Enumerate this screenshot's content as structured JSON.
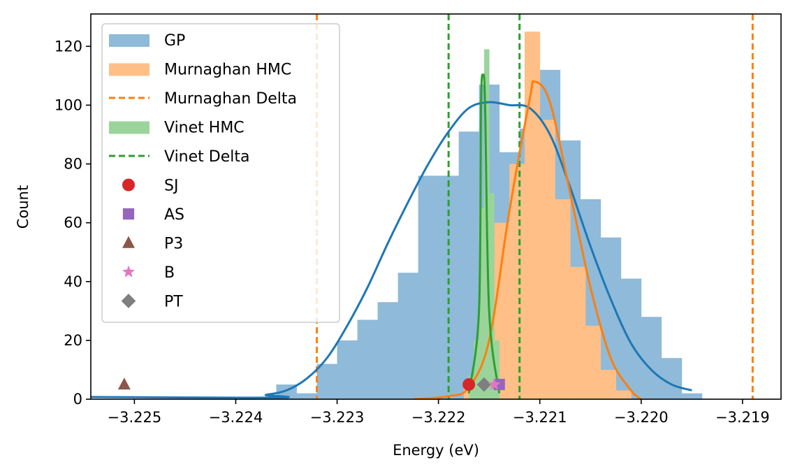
{
  "chart_data": {
    "type": "histogram",
    "xlabel": "Energy (eV)",
    "ylabel": "Count",
    "xlim": [
      -3.22543,
      -3.21862
    ],
    "ylim": [
      0,
      131
    ],
    "x_ticks": [
      -3.225,
      -3.224,
      -3.223,
      -3.222,
      -3.221,
      -3.22,
      -3.219
    ],
    "x_tick_labels": [
      "−3.225",
      "−3.224",
      "−3.223",
      "−3.222",
      "−3.221",
      "−3.220",
      "−3.219"
    ],
    "y_ticks": [
      0,
      20,
      40,
      60,
      80,
      100,
      120
    ],
    "y_tick_labels": [
      "0",
      "20",
      "40",
      "60",
      "80",
      "100",
      "120"
    ],
    "legend_position": "upper-left",
    "legend": [
      "GP",
      "Murnaghan HMC",
      "Murnaghan Delta",
      "Vinet HMC",
      "Vinet Delta",
      "SJ",
      "AS",
      "P3",
      "B",
      "PT"
    ],
    "histograms": [
      {
        "name": "GP",
        "color": "#1f77b4",
        "bar_color": "#8fbad9",
        "bin_edges": [
          -3.2236,
          -3.2234,
          -3.2232,
          -3.223,
          -3.2228,
          -3.2226,
          -3.2224,
          -3.2222,
          -3.222,
          -3.2218,
          -3.2216,
          -3.2214,
          -3.2212,
          -3.221,
          -3.2208,
          -3.2206,
          -3.2204,
          -3.2202,
          -3.22,
          -3.2198,
          -3.2196,
          -3.2194
        ],
        "counts": [
          5,
          2,
          12,
          20,
          27,
          33,
          43,
          76,
          76,
          91,
          107,
          84,
          92,
          112,
          88,
          68,
          55,
          41,
          28,
          14,
          2,
          3
        ],
        "kde_x": [
          -3.22395,
          -3.2237,
          -3.2235,
          -3.2233,
          -3.2231,
          -3.2229,
          -3.2227,
          -3.2225,
          -3.2223,
          -3.2221,
          -3.2219,
          -3.2217,
          -3.2215,
          -3.2213,
          -3.2211,
          -3.2209,
          -3.2207,
          -3.2205,
          -3.2203,
          -3.2201,
          -3.2199,
          -3.2197,
          -3.2195,
          -3.22935
        ],
        "kde_y": [
          0.5,
          1.5,
          3,
          7,
          14,
          25,
          38,
          53,
          67,
          80,
          91,
          99,
          101,
          100,
          99,
          90,
          72,
          52,
          34,
          19,
          10,
          5,
          3,
          1.5
        ]
      },
      {
        "name": "Murnaghan HMC",
        "color": "#ff7f0e",
        "bar_color": "#ffbf86",
        "bin_edges": [
          -3.22175,
          -3.2216,
          -3.22145,
          -3.2213,
          -3.22115,
          -3.221,
          -3.22085,
          -3.2207,
          -3.22055,
          -3.2204,
          -3.22025,
          -3.2201
        ],
        "counts": [
          5,
          15,
          60,
          80,
          125,
          95,
          68,
          45,
          25,
          10,
          3
        ],
        "kde_x": [
          -3.22225,
          -3.2219,
          -3.2217,
          -3.2215,
          -3.2213,
          -3.2211,
          -3.22105,
          -3.2209,
          -3.2207,
          -3.2205,
          -3.2203,
          -3.2201,
          -3.22
        ],
        "kde_y": [
          0,
          1,
          4,
          20,
          64,
          102,
          108,
          101,
          70,
          38,
          14,
          3,
          0
        ]
      },
      {
        "name": "Vinet HMC",
        "color": "#2ca02c",
        "bar_color": "#9bd49b",
        "bin_edges": [
          -3.2217,
          -3.22165,
          -3.2216,
          -3.22155,
          -3.2215,
          -3.22145,
          -3.2214
        ],
        "counts": [
          8,
          20,
          65,
          119,
          70,
          20
        ],
        "kde_x": [
          -3.2217,
          -3.2216,
          -3.22158,
          -3.22156,
          -3.22154,
          -3.2215,
          -3.2214
        ],
        "kde_y": [
          2,
          30,
          100,
          110,
          100,
          30,
          2
        ]
      }
    ],
    "vlines": [
      {
        "name": "Murnaghan Delta",
        "color": "#ff7f0e",
        "x": [
          -3.2232,
          -3.2189
        ]
      },
      {
        "name": "Vinet Delta",
        "color": "#2ca02c",
        "x": [
          -3.2219,
          -3.2212
        ]
      }
    ],
    "markers": [
      {
        "name": "SJ",
        "shape": "circle",
        "color": "#d62728",
        "x": -3.2217,
        "y": 5
      },
      {
        "name": "AS",
        "shape": "square",
        "color": "#9467bd",
        "x": -3.2214,
        "y": 5
      },
      {
        "name": "P3",
        "shape": "triangle",
        "color": "#8c564b",
        "x": -3.2251,
        "y": 5
      },
      {
        "name": "B",
        "shape": "star",
        "color": "#e377c2",
        "x": -3.22145,
        "y": 5
      },
      {
        "name": "PT",
        "shape": "diamond",
        "color": "#7f7f7f",
        "x": -3.22155,
        "y": 5
      }
    ]
  }
}
